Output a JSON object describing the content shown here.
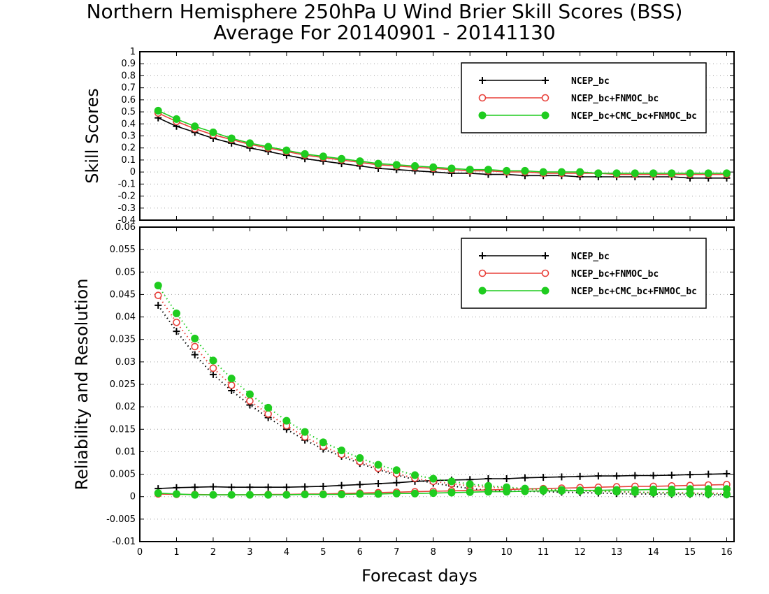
{
  "title_line1": "Northern Hemisphere 250hPa U Wind Brier Skill Scores (BSS)",
  "title_line2": "Average For 20140901 - 20141130",
  "colors": {
    "NCEP_bc": "#000000",
    "NCEP_bc+FNMOC_bc": "#e8403a",
    "NCEP_bc+CMC_bc+FNMOC_bc": "#1fcc1f"
  },
  "chart_data": [
    {
      "type": "line",
      "ylabel": "Skill Scores",
      "xlabel": "",
      "xlim": [
        0,
        16.2
      ],
      "ylim": [
        -0.4,
        1
      ],
      "yticks": [
        "-0.4",
        "-0.3",
        "-0.2",
        "-0.1",
        "0",
        "0.1",
        "0.2",
        "0.3",
        "0.4",
        "0.5",
        "0.6",
        "0.7",
        "0.8",
        "0.9",
        "1"
      ],
      "grid": true,
      "legend_position": "top-right",
      "x": [
        0.5,
        1,
        1.5,
        2,
        2.5,
        3,
        3.5,
        4,
        4.5,
        5,
        5.5,
        6,
        6.5,
        7,
        7.5,
        8,
        8.5,
        9,
        9.5,
        10,
        10.5,
        11,
        11.5,
        12,
        12.5,
        13,
        13.5,
        14,
        14.5,
        15,
        15.5,
        16
      ],
      "series": [
        {
          "name": "NCEP_bc",
          "marker": "plus",
          "line": "solid",
          "values": [
            0.45,
            0.38,
            0.33,
            0.28,
            0.24,
            0.2,
            0.17,
            0.14,
            0.11,
            0.09,
            0.07,
            0.05,
            0.03,
            0.02,
            0.01,
            0.0,
            -0.01,
            -0.01,
            -0.02,
            -0.02,
            -0.03,
            -0.03,
            -0.03,
            -0.04,
            -0.04,
            -0.04,
            -0.04,
            -0.04,
            -0.04,
            -0.05,
            -0.05,
            -0.05
          ]
        },
        {
          "name": "NCEP_bc+FNMOC_bc",
          "marker": "open-circle",
          "line": "solid",
          "values": [
            0.49,
            0.42,
            0.36,
            0.31,
            0.27,
            0.23,
            0.2,
            0.17,
            0.14,
            0.12,
            0.1,
            0.08,
            0.06,
            0.05,
            0.04,
            0.03,
            0.02,
            0.01,
            0.01,
            0.0,
            0.0,
            -0.01,
            -0.01,
            -0.01,
            -0.01,
            -0.02,
            -0.02,
            -0.02,
            -0.02,
            -0.02,
            -0.02,
            -0.02
          ]
        },
        {
          "name": "NCEP_bc+CMC_bc+FNMOC_bc",
          "marker": "filled-circle",
          "line": "solid",
          "values": [
            0.51,
            0.44,
            0.38,
            0.33,
            0.28,
            0.24,
            0.21,
            0.18,
            0.15,
            0.13,
            0.11,
            0.09,
            0.07,
            0.06,
            0.05,
            0.04,
            0.03,
            0.02,
            0.02,
            0.01,
            0.01,
            0.0,
            0.0,
            0.0,
            -0.01,
            -0.01,
            -0.01,
            -0.01,
            -0.01,
            -0.01,
            -0.01,
            -0.01
          ]
        }
      ]
    },
    {
      "type": "line",
      "ylabel": "Reliability and Resolution",
      "xlabel": "Forecast days",
      "xlim": [
        0,
        16.2
      ],
      "ylim": [
        -0.01,
        0.06
      ],
      "xticks": [
        "0",
        "1",
        "2",
        "3",
        "4",
        "5",
        "6",
        "7",
        "8",
        "9",
        "10",
        "11",
        "12",
        "13",
        "14",
        "15",
        "16"
      ],
      "yticks": [
        "-0.01",
        "-0.005",
        "0",
        "0.005",
        "0.01",
        "0.015",
        "0.02",
        "0.025",
        "0.03",
        "0.035",
        "0.04",
        "0.045",
        "0.05",
        "0.055",
        "0.06"
      ],
      "grid": true,
      "legend_position": "top-right",
      "x": [
        0.5,
        1,
        1.5,
        2,
        2.5,
        3,
        3.5,
        4,
        4.5,
        5,
        5.5,
        6,
        6.5,
        7,
        7.5,
        8,
        8.5,
        9,
        9.5,
        10,
        10.5,
        11,
        11.5,
        12,
        12.5,
        13,
        13.5,
        14,
        14.5,
        15,
        15.5,
        16
      ],
      "series": [
        {
          "name": "NCEP_bc",
          "kind": "resolution",
          "marker": "plus",
          "line": "dotted",
          "values": [
            0.0426,
            0.0368,
            0.0316,
            0.0272,
            0.0236,
            0.0204,
            0.0176,
            0.015,
            0.0126,
            0.0106,
            0.009,
            0.0074,
            0.006,
            0.0048,
            0.0038,
            0.003,
            0.0024,
            0.0018,
            0.0014,
            0.0013,
            0.0012,
            0.0011,
            0.001,
            0.0009,
            0.0008,
            0.0007,
            0.0006,
            0.0006,
            0.0005,
            0.0005,
            0.0004,
            0.0004
          ]
        },
        {
          "name": "NCEP_bc",
          "kind": "reliability",
          "marker": "plus",
          "line": "solid",
          "values": [
            0.0018,
            0.002,
            0.0021,
            0.0022,
            0.0021,
            0.0021,
            0.0021,
            0.0021,
            0.0022,
            0.0023,
            0.0025,
            0.0027,
            0.0029,
            0.0031,
            0.0034,
            0.0036,
            0.0037,
            0.0038,
            0.004,
            0.004,
            0.0042,
            0.0043,
            0.0044,
            0.0045,
            0.0046,
            0.0046,
            0.0047,
            0.0047,
            0.0048,
            0.0049,
            0.005,
            0.0051
          ]
        },
        {
          "name": "NCEP_bc+FNMOC_bc",
          "kind": "resolution",
          "marker": "open-circle",
          "line": "dotted",
          "values": [
            0.0448,
            0.0388,
            0.0334,
            0.0286,
            0.0248,
            0.0213,
            0.0184,
            0.0158,
            0.0133,
            0.0112,
            0.0094,
            0.0078,
            0.0063,
            0.0051,
            0.0041,
            0.0034,
            0.0029,
            0.0024,
            0.0021,
            0.0019,
            0.0017,
            0.0015,
            0.0014,
            0.0013,
            0.0012,
            0.0011,
            0.001,
            0.0009,
            0.0009,
            0.0008,
            0.0008,
            0.0007
          ]
        },
        {
          "name": "NCEP_bc+FNMOC_bc",
          "kind": "reliability",
          "marker": "open-circle",
          "line": "solid",
          "values": [
            0.0006,
            0.0005,
            0.0005,
            0.0004,
            0.0004,
            0.0004,
            0.0005,
            0.0005,
            0.0006,
            0.0006,
            0.0007,
            0.0008,
            0.0009,
            0.001,
            0.0011,
            0.0012,
            0.0013,
            0.0014,
            0.0015,
            0.0016,
            0.0017,
            0.0018,
            0.0019,
            0.002,
            0.0021,
            0.0022,
            0.0023,
            0.0023,
            0.0024,
            0.0025,
            0.0026,
            0.0027
          ]
        },
        {
          "name": "NCEP_bc+CMC_bc+FNMOC_bc",
          "kind": "resolution",
          "marker": "filled-circle",
          "line": "dotted",
          "values": [
            0.047,
            0.0408,
            0.0352,
            0.0303,
            0.0263,
            0.0228,
            0.0198,
            0.0169,
            0.0144,
            0.0121,
            0.0103,
            0.0086,
            0.0071,
            0.0059,
            0.0048,
            0.004,
            0.0034,
            0.0028,
            0.0024,
            0.0021,
            0.0018,
            0.0016,
            0.0015,
            0.0013,
            0.0012,
            0.0011,
            0.001,
            0.0009,
            0.0008,
            0.0007,
            0.0006,
            0.0005
          ]
        },
        {
          "name": "NCEP_bc+CMC_bc+FNMOC_bc",
          "kind": "reliability",
          "marker": "filled-circle",
          "line": "solid",
          "values": [
            0.0008,
            0.0006,
            0.0004,
            0.0004,
            0.0004,
            0.0004,
            0.0004,
            0.0004,
            0.0005,
            0.0005,
            0.0005,
            0.0006,
            0.0006,
            0.0007,
            0.0007,
            0.0008,
            0.0009,
            0.001,
            0.0011,
            0.0011,
            0.0012,
            0.0013,
            0.0013,
            0.0014,
            0.0014,
            0.0015,
            0.0015,
            0.0016,
            0.0016,
            0.0017,
            0.0017,
            0.0017
          ]
        }
      ]
    }
  ]
}
